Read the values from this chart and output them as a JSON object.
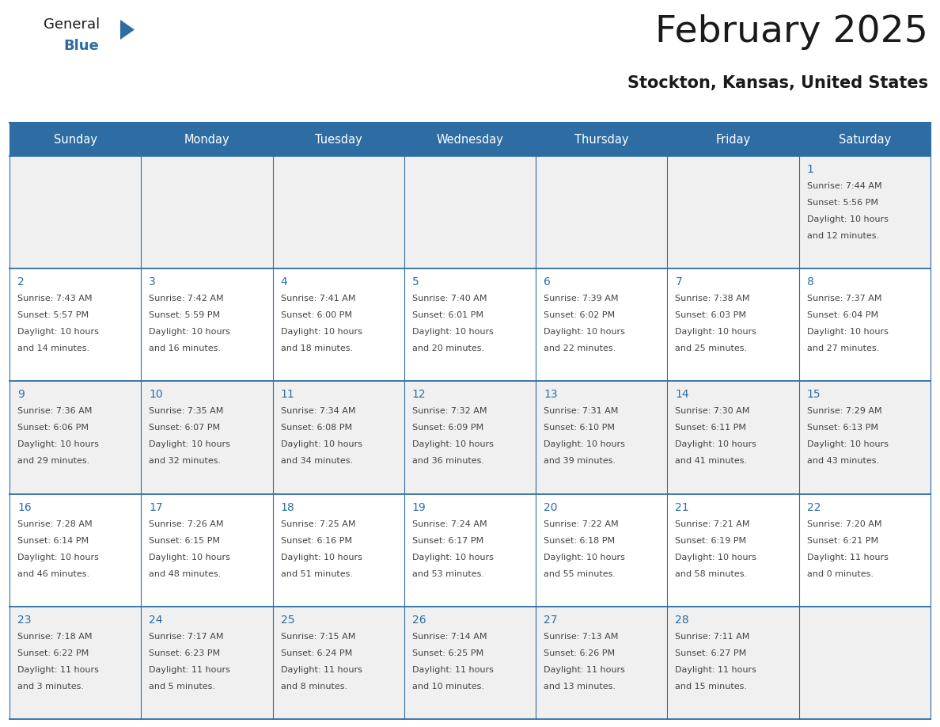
{
  "title": "February 2025",
  "subtitle": "Stockton, Kansas, United States",
  "days_of_week": [
    "Sunday",
    "Monday",
    "Tuesday",
    "Wednesday",
    "Thursday",
    "Friday",
    "Saturday"
  ],
  "header_bg": "#2E6DA4",
  "header_text_color": "#FFFFFF",
  "cell_bg_light": "#F0F0F0",
  "cell_bg_white": "#FFFFFF",
  "cell_line_color": "#2E6DA4",
  "day_number_color": "#2E6DA4",
  "info_text_color": "#444444",
  "title_color": "#1A1A1A",
  "subtitle_color": "#1A1A1A",
  "logo_color1": "#1A1A1A",
  "logo_color2": "#2E6DA4",
  "calendar_data": [
    [
      null,
      null,
      null,
      null,
      null,
      null,
      {
        "day": 1,
        "sunrise": "7:44 AM",
        "sunset": "5:56 PM",
        "daylight": "10 hours",
        "daylight2": "and 12 minutes."
      }
    ],
    [
      {
        "day": 2,
        "sunrise": "7:43 AM",
        "sunset": "5:57 PM",
        "daylight": "10 hours",
        "daylight2": "and 14 minutes."
      },
      {
        "day": 3,
        "sunrise": "7:42 AM",
        "sunset": "5:59 PM",
        "daylight": "10 hours",
        "daylight2": "and 16 minutes."
      },
      {
        "day": 4,
        "sunrise": "7:41 AM",
        "sunset": "6:00 PM",
        "daylight": "10 hours",
        "daylight2": "and 18 minutes."
      },
      {
        "day": 5,
        "sunrise": "7:40 AM",
        "sunset": "6:01 PM",
        "daylight": "10 hours",
        "daylight2": "and 20 minutes."
      },
      {
        "day": 6,
        "sunrise": "7:39 AM",
        "sunset": "6:02 PM",
        "daylight": "10 hours",
        "daylight2": "and 22 minutes."
      },
      {
        "day": 7,
        "sunrise": "7:38 AM",
        "sunset": "6:03 PM",
        "daylight": "10 hours",
        "daylight2": "and 25 minutes."
      },
      {
        "day": 8,
        "sunrise": "7:37 AM",
        "sunset": "6:04 PM",
        "daylight": "10 hours",
        "daylight2": "and 27 minutes."
      }
    ],
    [
      {
        "day": 9,
        "sunrise": "7:36 AM",
        "sunset": "6:06 PM",
        "daylight": "10 hours",
        "daylight2": "and 29 minutes."
      },
      {
        "day": 10,
        "sunrise": "7:35 AM",
        "sunset": "6:07 PM",
        "daylight": "10 hours",
        "daylight2": "and 32 minutes."
      },
      {
        "day": 11,
        "sunrise": "7:34 AM",
        "sunset": "6:08 PM",
        "daylight": "10 hours",
        "daylight2": "and 34 minutes."
      },
      {
        "day": 12,
        "sunrise": "7:32 AM",
        "sunset": "6:09 PM",
        "daylight": "10 hours",
        "daylight2": "and 36 minutes."
      },
      {
        "day": 13,
        "sunrise": "7:31 AM",
        "sunset": "6:10 PM",
        "daylight": "10 hours",
        "daylight2": "and 39 minutes."
      },
      {
        "day": 14,
        "sunrise": "7:30 AM",
        "sunset": "6:11 PM",
        "daylight": "10 hours",
        "daylight2": "and 41 minutes."
      },
      {
        "day": 15,
        "sunrise": "7:29 AM",
        "sunset": "6:13 PM",
        "daylight": "10 hours",
        "daylight2": "and 43 minutes."
      }
    ],
    [
      {
        "day": 16,
        "sunrise": "7:28 AM",
        "sunset": "6:14 PM",
        "daylight": "10 hours",
        "daylight2": "and 46 minutes."
      },
      {
        "day": 17,
        "sunrise": "7:26 AM",
        "sunset": "6:15 PM",
        "daylight": "10 hours",
        "daylight2": "and 48 minutes."
      },
      {
        "day": 18,
        "sunrise": "7:25 AM",
        "sunset": "6:16 PM",
        "daylight": "10 hours",
        "daylight2": "and 51 minutes."
      },
      {
        "day": 19,
        "sunrise": "7:24 AM",
        "sunset": "6:17 PM",
        "daylight": "10 hours",
        "daylight2": "and 53 minutes."
      },
      {
        "day": 20,
        "sunrise": "7:22 AM",
        "sunset": "6:18 PM",
        "daylight": "10 hours",
        "daylight2": "and 55 minutes."
      },
      {
        "day": 21,
        "sunrise": "7:21 AM",
        "sunset": "6:19 PM",
        "daylight": "10 hours",
        "daylight2": "and 58 minutes."
      },
      {
        "day": 22,
        "sunrise": "7:20 AM",
        "sunset": "6:21 PM",
        "daylight": "11 hours",
        "daylight2": "and 0 minutes."
      }
    ],
    [
      {
        "day": 23,
        "sunrise": "7:18 AM",
        "sunset": "6:22 PM",
        "daylight": "11 hours",
        "daylight2": "and 3 minutes."
      },
      {
        "day": 24,
        "sunrise": "7:17 AM",
        "sunset": "6:23 PM",
        "daylight": "11 hours",
        "daylight2": "and 5 minutes."
      },
      {
        "day": 25,
        "sunrise": "7:15 AM",
        "sunset": "6:24 PM",
        "daylight": "11 hours",
        "daylight2": "and 8 minutes."
      },
      {
        "day": 26,
        "sunrise": "7:14 AM",
        "sunset": "6:25 PM",
        "daylight": "11 hours",
        "daylight2": "and 10 minutes."
      },
      {
        "day": 27,
        "sunrise": "7:13 AM",
        "sunset": "6:26 PM",
        "daylight": "11 hours",
        "daylight2": "and 13 minutes."
      },
      {
        "day": 28,
        "sunrise": "7:11 AM",
        "sunset": "6:27 PM",
        "daylight": "11 hours",
        "daylight2": "and 15 minutes."
      },
      null
    ]
  ]
}
